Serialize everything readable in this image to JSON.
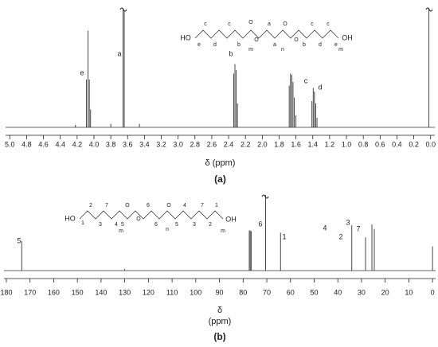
{
  "chart_data": [
    {
      "type": "spectrum",
      "xlabel": "δ (ppm)",
      "caption": "(a)",
      "xlim": [
        5.05,
        -0.05
      ],
      "ylim": [
        0,
        100
      ],
      "xticks": [
        {
          "value": 5,
          "label": "5.0"
        },
        {
          "value": 4.8,
          "label": "4.8"
        },
        {
          "value": 4.6,
          "label": "4.6"
        },
        {
          "value": 4.4,
          "label": "4.4"
        },
        {
          "value": 4.2,
          "label": "4.2"
        },
        {
          "value": 4,
          "label": "4.0"
        },
        {
          "value": 3.8,
          "label": "3.8"
        },
        {
          "value": 3.6,
          "label": "3.6"
        },
        {
          "value": 3.4,
          "label": "3.4"
        },
        {
          "value": 3.2,
          "label": "3.2"
        },
        {
          "value": 3,
          "label": "3.0"
        },
        {
          "value": 2.8,
          "label": "2.8"
        },
        {
          "value": 2.6,
          "label": "2.6"
        },
        {
          "value": 2.4,
          "label": "2.4"
        },
        {
          "value": 2.2,
          "label": "2.2"
        },
        {
          "value": 2,
          "label": "2.0"
        },
        {
          "value": 1.8,
          "label": "1.8"
        },
        {
          "value": 1.6,
          "label": "1.6"
        },
        {
          "value": 1.4,
          "label": "1.4"
        },
        {
          "value": 1.2,
          "label": "1.2"
        },
        {
          "value": 1,
          "label": "1.0"
        },
        {
          "value": 0.8,
          "label": "0.8"
        },
        {
          "value": 0.6,
          "label": "0.6"
        },
        {
          "value": 0.4,
          "label": "0.4"
        },
        {
          "value": 0.2,
          "label": "0.2"
        },
        {
          "value": 0,
          "label": "0.0"
        }
      ],
      "x": [
        4.22,
        4.09,
        4.07,
        4.055,
        4.04,
        3.8,
        3.655,
        3.64,
        3.46,
        2.34,
        2.325,
        2.31,
        2.295,
        1.68,
        1.665,
        1.65,
        1.635,
        1.62,
        1.6,
        1.41,
        1.395,
        1.38,
        1.365,
        1.35,
        0.02
      ],
      "values": [
        2,
        40,
        81,
        40,
        15,
        3,
        100,
        98,
        3,
        45,
        53,
        48,
        20,
        35,
        45,
        44,
        38,
        25,
        10,
        22,
        33,
        30,
        20,
        8,
        100
      ],
      "color": "#333333",
      "peak_labels": [
        "e",
        "a",
        "b",
        "c",
        "d"
      ],
      "structure": [
        "HO",
        "e",
        "c",
        "d",
        "c",
        "b",
        "O",
        "m",
        "O",
        "a",
        "a",
        "n",
        "O",
        "O",
        "b",
        "c",
        "d",
        "c",
        "e",
        "m",
        "OH"
      ]
    },
    {
      "type": "spectrum",
      "xlabel": [
        "δ",
        "(ppm)"
      ],
      "caption": "(b)",
      "xlim": [
        181,
        -1.3
      ],
      "ylim": [
        0,
        100
      ],
      "xticks": [
        180,
        170,
        160,
        150,
        140,
        130,
        120,
        110,
        100,
        90,
        80,
        70,
        60,
        50,
        40,
        30,
        20,
        10,
        0
      ],
      "x": [
        173.5,
        130,
        77.4,
        77.0,
        76.6,
        70.5,
        64.2,
        34.1,
        28.3,
        25.6,
        24.6,
        0
      ],
      "values": [
        39,
        2,
        53,
        53,
        52,
        100,
        50,
        60,
        44,
        61,
        55,
        32
      ],
      "color": "#333333",
      "peak_labels": [
        "5",
        "6",
        "1",
        "4",
        "2",
        "3",
        "7"
      ],
      "structure": [
        "HO",
        "1",
        "2",
        "3",
        "7",
        "4",
        "5",
        "O",
        "m",
        "O",
        "6",
        "6",
        "n",
        "O",
        "5",
        "4",
        "3",
        "7",
        "2",
        "1",
        "m",
        "OH"
      ]
    }
  ]
}
